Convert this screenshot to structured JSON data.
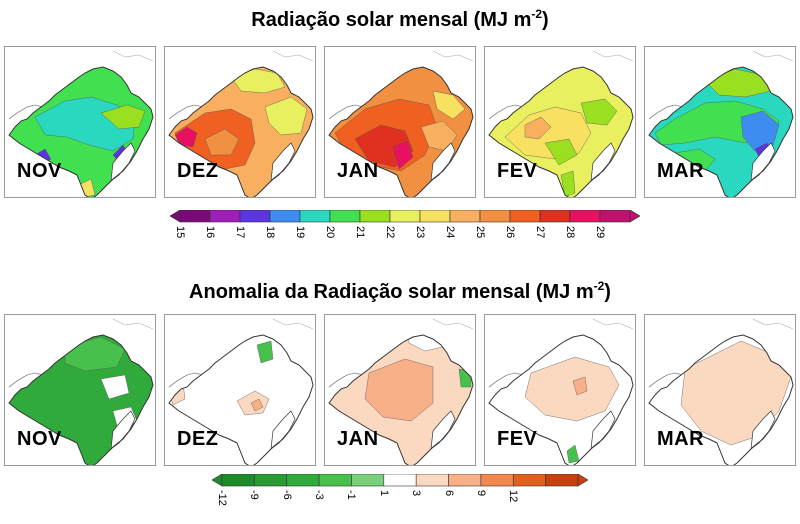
{
  "top_title": {
    "text": "Radiação solar mensal (MJ m",
    "exp": "-2",
    "close": ")"
  },
  "bottom_title": {
    "text": "Anomalia da Radiação solar mensal (MJ m",
    "exp": "-2",
    "close": ")"
  },
  "months": [
    "NOV",
    "DEZ",
    "JAN",
    "FEV",
    "MAR"
  ],
  "radiation_scale": {
    "ticks": [
      "15",
      "16",
      "17",
      "18",
      "19",
      "20",
      "21",
      "22",
      "23",
      "24",
      "25",
      "26",
      "27",
      "28",
      "29"
    ],
    "colors": [
      "#7a0a78",
      "#9d1fb8",
      "#5a35e0",
      "#3f8cf0",
      "#2ad8c0",
      "#40e050",
      "#9ae020",
      "#e8f060",
      "#f8e060",
      "#f8b060",
      "#f09040",
      "#f06020",
      "#e03020",
      "#e81060",
      "#c01070"
    ]
  },
  "anomaly_scale": {
    "ticks": [
      "-12",
      "-9",
      "-6",
      "-3",
      "-1",
      "1",
      "3",
      "6",
      "9",
      "12"
    ],
    "colors": [
      "#1e8a2a",
      "#2a9a32",
      "#30aa3a",
      "#48c04c",
      "#7ad07a",
      "#ffffff",
      "#fbd8c0",
      "#f8b088",
      "#f08850",
      "#e06020",
      "#c84010"
    ]
  },
  "colors": {
    "border": "#9a9a9a",
    "map_line": "#333333"
  }
}
